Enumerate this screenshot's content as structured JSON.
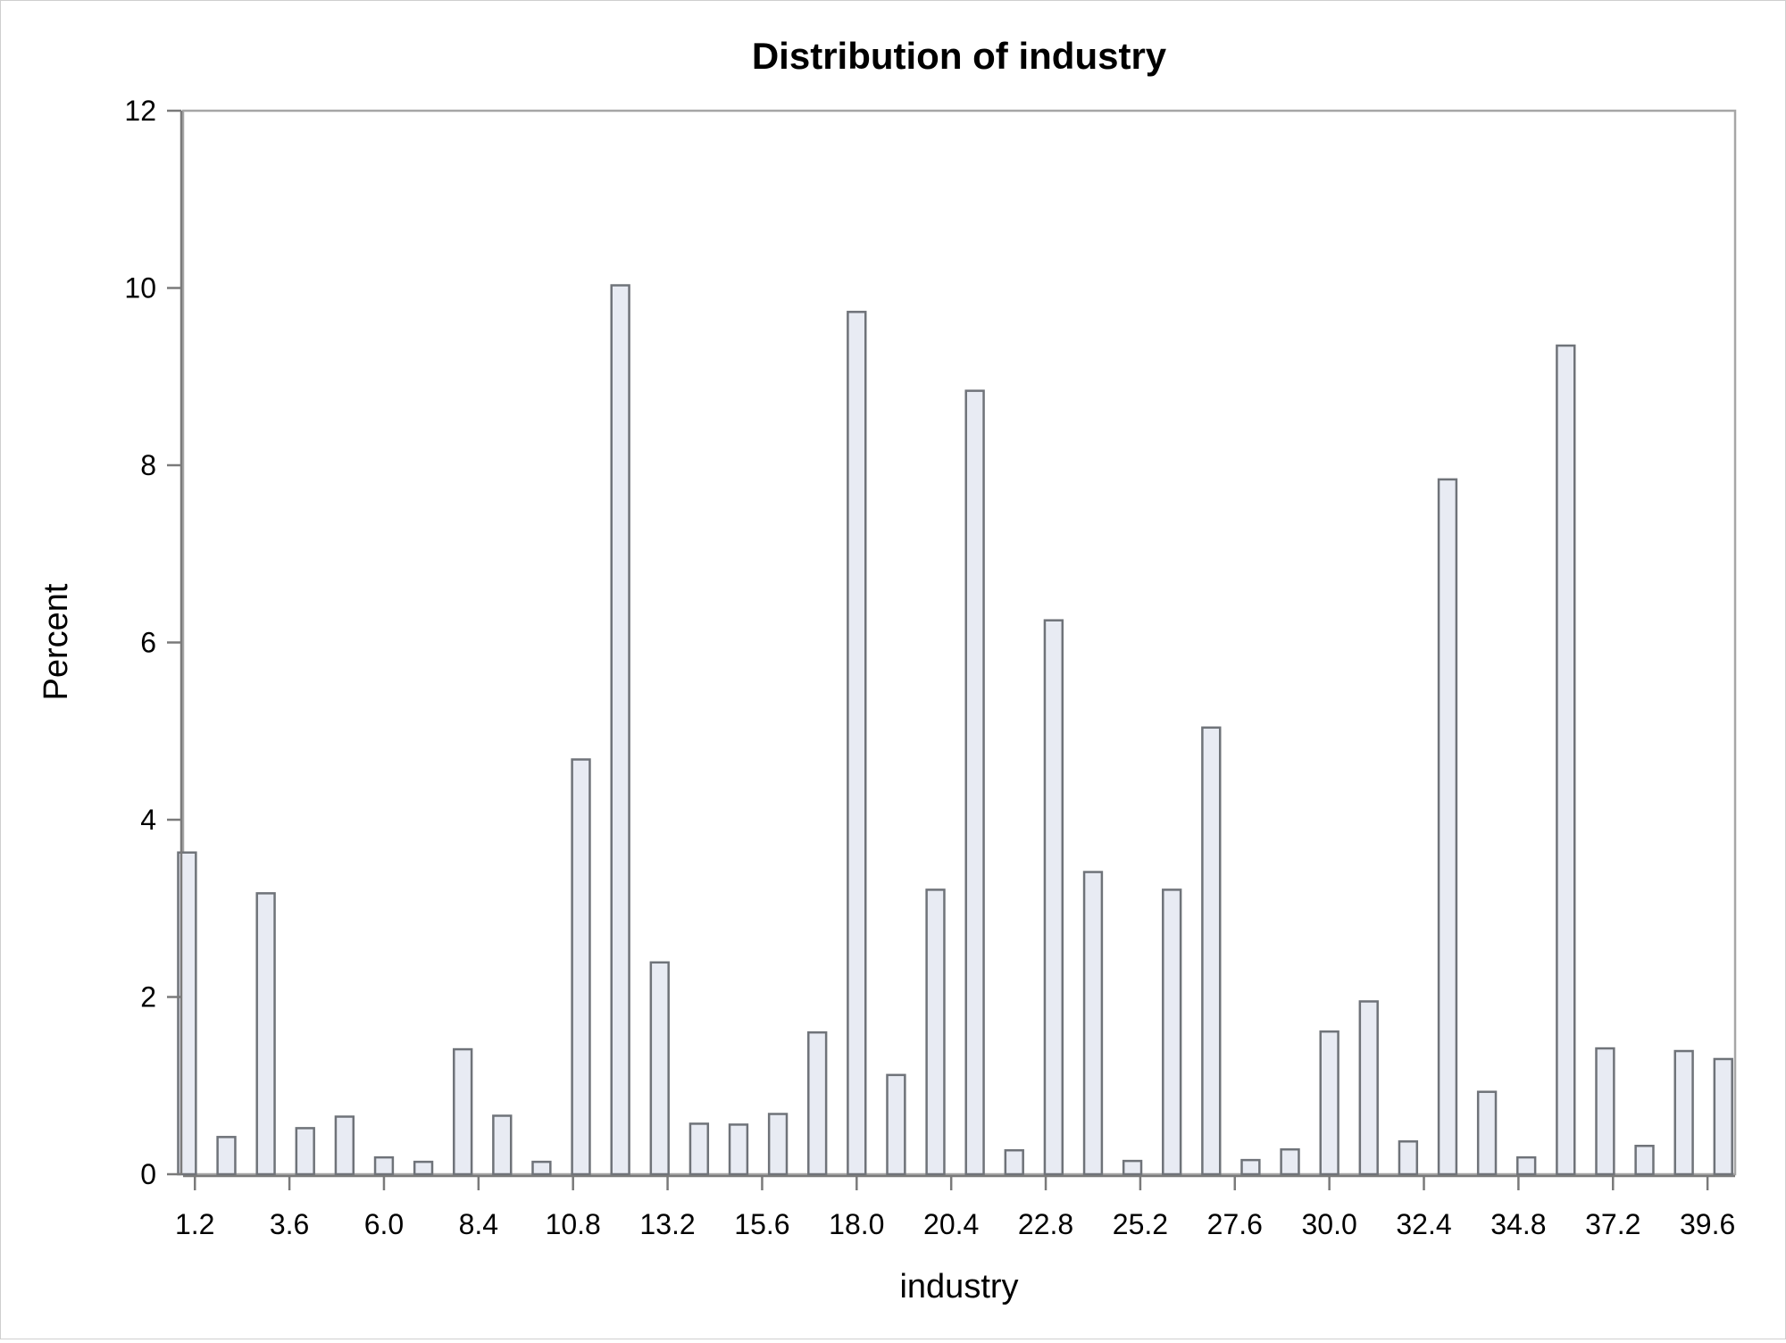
{
  "chart_data": {
    "type": "bar",
    "title": "Distribution of industry",
    "xlabel": "industry",
    "ylabel": "Percent",
    "xlim": [
      0.9,
      40.3
    ],
    "ylim": [
      0,
      12
    ],
    "yticks": [
      0,
      2,
      4,
      6,
      8,
      10,
      12
    ],
    "xticks": [
      1.2,
      3.6,
      6.0,
      8.4,
      10.8,
      13.2,
      15.6,
      18.0,
      20.4,
      22.8,
      25.2,
      27.6,
      30.0,
      32.4,
      34.8,
      37.2,
      39.6
    ],
    "xtick_labels": [
      "1.2",
      "3.6",
      "6.0",
      "8.4",
      "10.8",
      "13.2",
      "15.6",
      "18.0",
      "20.4",
      "22.8",
      "25.2",
      "27.6",
      "30.0",
      "32.4",
      "34.8",
      "37.2",
      "39.6"
    ],
    "grid": false,
    "legend": "none",
    "bar_width": 0.45,
    "bars": [
      {
        "x": 1,
        "value": 3.63
      },
      {
        "x": 2,
        "value": 0.42
      },
      {
        "x": 3,
        "value": 3.17
      },
      {
        "x": 4,
        "value": 0.52
      },
      {
        "x": 5,
        "value": 0.65
      },
      {
        "x": 6,
        "value": 0.19
      },
      {
        "x": 7,
        "value": 0.14
      },
      {
        "x": 8,
        "value": 1.41
      },
      {
        "x": 9,
        "value": 0.66
      },
      {
        "x": 10,
        "value": 0.14
      },
      {
        "x": 11,
        "value": 4.68
      },
      {
        "x": 12,
        "value": 10.03
      },
      {
        "x": 13,
        "value": 2.39
      },
      {
        "x": 14,
        "value": 0.57
      },
      {
        "x": 15,
        "value": 0.56
      },
      {
        "x": 16,
        "value": 0.68
      },
      {
        "x": 17,
        "value": 1.6
      },
      {
        "x": 18,
        "value": 9.73
      },
      {
        "x": 19,
        "value": 1.12
      },
      {
        "x": 20,
        "value": 3.21
      },
      {
        "x": 21,
        "value": 8.84
      },
      {
        "x": 22,
        "value": 0.27
      },
      {
        "x": 23,
        "value": 6.25
      },
      {
        "x": 24,
        "value": 3.41
      },
      {
        "x": 25,
        "value": 0.15
      },
      {
        "x": 26,
        "value": 3.21
      },
      {
        "x": 27,
        "value": 5.04
      },
      {
        "x": 28,
        "value": 0.16
      },
      {
        "x": 29,
        "value": 0.28
      },
      {
        "x": 30,
        "value": 1.61
      },
      {
        "x": 31,
        "value": 1.95
      },
      {
        "x": 32,
        "value": 0.37
      },
      {
        "x": 33,
        "value": 7.84
      },
      {
        "x": 34,
        "value": 0.93
      },
      {
        "x": 35,
        "value": 0.19
      },
      {
        "x": 36,
        "value": 9.35
      },
      {
        "x": 37,
        "value": 1.42
      },
      {
        "x": 38,
        "value": 0.32
      },
      {
        "x": 39,
        "value": 1.39
      },
      {
        "x": 40,
        "value": 1.3
      }
    ]
  }
}
